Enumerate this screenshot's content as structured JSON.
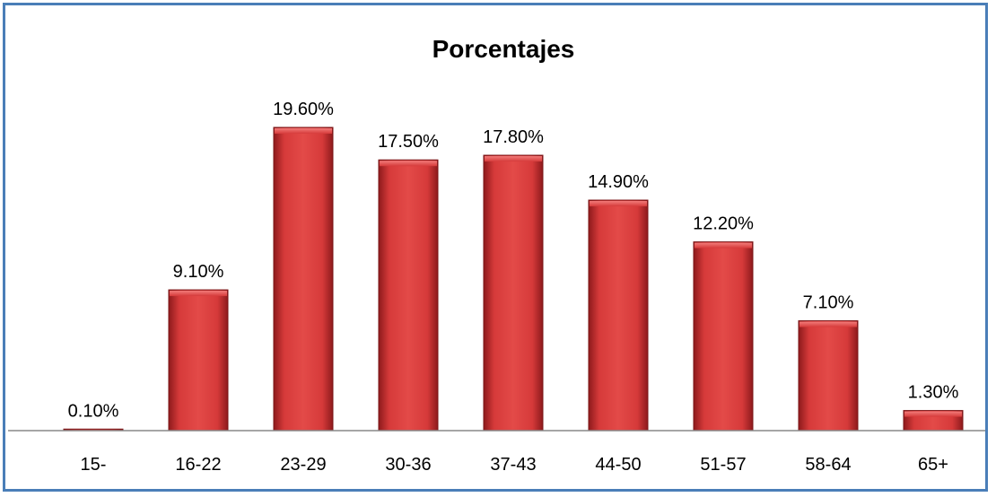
{
  "chart_data": {
    "type": "bar",
    "title": "Porcentajes",
    "xlabel": "",
    "ylabel": "",
    "categories": [
      "15-",
      "16-22",
      "23-29",
      "30-36",
      "37-43",
      "44-50",
      "51-57",
      "58-64",
      "65+"
    ],
    "values": [
      0.1,
      9.1,
      19.6,
      17.5,
      17.8,
      14.9,
      12.2,
      7.1,
      1.3
    ],
    "data_labels": [
      "0.10%",
      "9.10%",
      "19.60%",
      "17.50%",
      "17.80%",
      "14.90%",
      "12.20%",
      "7.10%",
      "1.30%"
    ],
    "ylim": [
      0,
      19.6
    ],
    "grid": false,
    "legend": "none",
    "bar_color": "#c8282a",
    "frame_color": "#4a7eb8"
  }
}
